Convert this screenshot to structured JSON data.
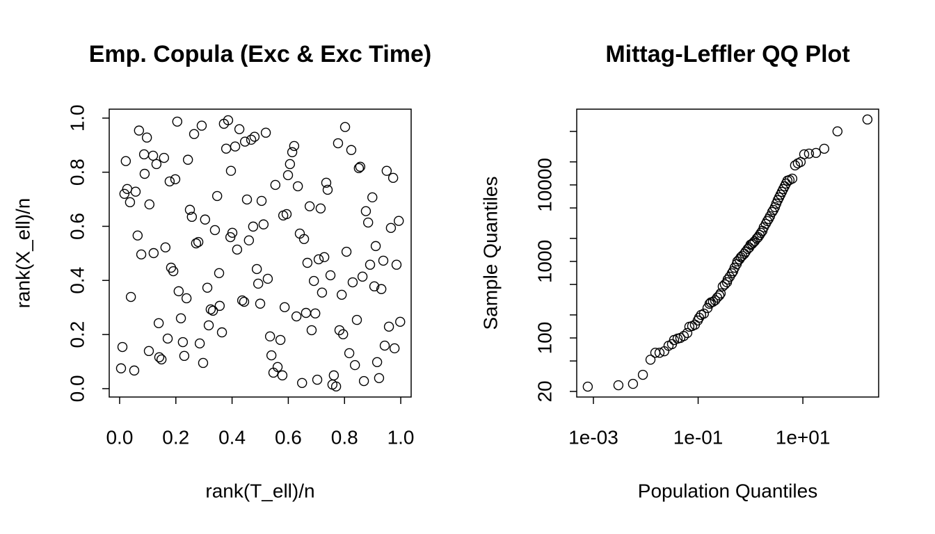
{
  "chart_data": [
    {
      "type": "scatter",
      "title": "Emp. Copula (Exc & Exc Time)",
      "x_label": "rank(T_ell)/n",
      "y_label": "rank(X_ell)/n",
      "xlim": [
        -0.037,
        1.037
      ],
      "ylim": [
        -0.031,
        1.033
      ],
      "xticks": [
        {
          "value": 0,
          "label": "0.0"
        },
        0.2,
        0.4,
        0.6,
        0.8,
        {
          "value": 1,
          "label": "1.0"
        }
      ],
      "yticks": [
        {
          "value": 0,
          "label": "0.0"
        },
        0.2,
        0.4,
        0.6,
        0.8,
        {
          "value": 1,
          "label": "1.0"
        }
      ],
      "color": "#000000",
      "x": [
        0.005,
        0.01,
        0.022,
        0.017,
        0.027,
        0.037,
        0.04,
        0.052,
        0.057,
        0.064,
        0.069,
        0.077,
        0.087,
        0.089,
        0.097,
        0.104,
        0.106,
        0.119,
        0.121,
        0.131,
        0.139,
        0.141,
        0.149,
        0.158,
        0.163,
        0.171,
        0.178,
        0.183,
        0.191,
        0.198,
        0.205,
        0.21,
        0.218,
        0.225,
        0.23,
        0.238,
        0.243,
        0.25,
        0.257,
        0.265,
        0.272,
        0.28,
        0.285,
        0.292,
        0.297,
        0.304,
        0.312,
        0.317,
        0.324,
        0.332,
        0.339,
        0.347,
        0.354,
        0.356,
        0.364,
        0.371,
        0.379,
        0.386,
        0.396,
        0.401,
        0.394,
        0.418,
        0.411,
        0.426,
        0.436,
        0.443,
        0.446,
        0.453,
        0.46,
        0.468,
        0.475,
        0.48,
        0.488,
        0.493,
        0.5,
        0.505,
        0.512,
        0.52,
        0.527,
        0.535,
        0.54,
        0.547,
        0.554,
        0.562,
        0.572,
        0.579,
        0.582,
        0.587,
        0.594,
        0.599,
        0.606,
        0.614,
        0.621,
        0.629,
        0.634,
        0.641,
        0.649,
        0.656,
        0.663,
        0.668,
        0.676,
        0.683,
        0.691,
        0.696,
        0.703,
        0.708,
        0.715,
        0.72,
        0.728,
        0.735,
        0.74,
        0.75,
        0.757,
        0.762,
        0.77,
        0.777,
        0.782,
        0.79,
        0.795,
        0.802,
        0.807,
        0.817,
        0.824,
        0.829,
        0.837,
        0.844,
        0.851,
        0.856,
        0.864,
        0.869,
        0.876,
        0.884,
        0.891,
        0.899,
        0.906,
        0.911,
        0.916,
        0.923,
        0.931,
        0.938,
        0.943,
        0.95,
        0.958,
        0.965,
        0.973,
        0.978,
        0.985,
        0.993,
        0.998
      ],
      "y": [
        0.075,
        0.154,
        0.841,
        0.72,
        0.738,
        0.689,
        0.339,
        0.067,
        0.728,
        0.566,
        0.954,
        0.496,
        0.866,
        0.794,
        0.928,
        0.139,
        0.681,
        0.861,
        0.501,
        0.83,
        0.242,
        0.116,
        0.108,
        0.853,
        0.522,
        0.185,
        0.766,
        0.447,
        0.434,
        0.774,
        0.987,
        0.36,
        0.26,
        0.172,
        0.121,
        0.334,
        0.846,
        0.661,
        0.635,
        0.941,
        0.537,
        0.542,
        0.167,
        0.972,
        0.095,
        0.625,
        0.373,
        0.234,
        0.293,
        0.288,
        0.586,
        0.712,
        0.427,
        0.306,
        0.208,
        0.979,
        0.887,
        0.992,
        0.805,
        0.576,
        0.56,
        0.514,
        0.895,
        0.959,
        0.326,
        0.321,
        0.913,
        0.699,
        0.548,
        0.92,
        0.599,
        0.931,
        0.442,
        0.388,
        0.314,
        0.694,
        0.607,
        0.946,
        0.406,
        0.193,
        0.123,
        0.059,
        0.753,
        0.08,
        0.18,
        0.049,
        0.64,
        0.301,
        0.645,
        0.789,
        0.83,
        0.874,
        0.897,
        0.267,
        0.748,
        0.573,
        0.021,
        0.553,
        0.28,
        0.465,
        0.674,
        0.216,
        0.398,
        0.278,
        0.033,
        0.478,
        0.666,
        0.355,
        0.486,
        0.761,
        0.735,
        0.419,
        0.015,
        0.049,
        0.008,
        0.907,
        0.216,
        0.347,
        0.201,
        0.967,
        0.506,
        0.131,
        0.882,
        0.393,
        0.087,
        0.254,
        0.815,
        0.82,
        0.414,
        0.028,
        0.656,
        0.614,
        0.458,
        0.707,
        0.378,
        0.527,
        0.098,
        0.039,
        0.368,
        0.473,
        0.159,
        0.805,
        0.229,
        0.594,
        0.779,
        0.149,
        0.458,
        0.62,
        0.247
      ]
    },
    {
      "type": "scatter",
      "title": "Mittag-Leffler QQ Plot",
      "x_label": "Population Quantiles",
      "y_label": "Sample Quantiles",
      "xscale": "log",
      "yscale": "log",
      "xlim": [
        0.00048,
        280
      ],
      "ylim": [
        16.9,
        97700
      ],
      "xticks": [
        {
          "value": 0.001,
          "label": "1e-03"
        },
        {
          "value": 0.1,
          "label": "1e-01"
        },
        {
          "value": 10,
          "label": "1e+01"
        }
      ],
      "yticks": [
        20,
        100,
        1000,
        10000
      ],
      "yticks_minor": [
        50,
        200,
        500,
        2000,
        5000,
        20000,
        50000
      ],
      "color": "#000000",
      "x": [
        0.00078,
        0.003,
        0.0057,
        0.0088,
        0.0123,
        0.0152,
        0.0183,
        0.0226,
        0.0272,
        0.0317,
        0.0347,
        0.0405,
        0.0457,
        0.0532,
        0.0621,
        0.068,
        0.0769,
        0.0869,
        0.0982,
        0.1045,
        0.114,
        0.129,
        0.151,
        0.165,
        0.175,
        0.192,
        0.211,
        0.231,
        0.254,
        0.269,
        0.295,
        0.324,
        0.355,
        0.366,
        0.401,
        0.44,
        0.467,
        0.497,
        0.545,
        0.561,
        0.615,
        0.653,
        0.695,
        0.762,
        0.809,
        0.887,
        0.944,
        1.0,
        1.07,
        1.13,
        1.2,
        1.32,
        1.4,
        1.49,
        1.58,
        1.69,
        1.79,
        1.96,
        2.09,
        2.22,
        2.36,
        2.59,
        2.75,
        2.93,
        3.11,
        3.31,
        3.52,
        3.74,
        3.97,
        4.22,
        4.49,
        4.77,
        5.07,
        5.56,
        6.28,
        7.1,
        8.02,
        9.08,
        10.6,
        13.1,
        17.8,
        25.6,
        45.8,
        171
      ],
      "y": [
        23.1,
        24.1,
        25.1,
        33,
        52,
        64,
        64,
        67,
        79,
        83,
        94,
        98,
        100,
        106,
        116,
        140,
        143,
        149,
        169,
        184,
        200,
        208,
        246,
        279,
        291,
        297,
        310,
        337,
        359,
        382,
        471,
        501,
        534,
        580,
        631,
        700,
        746,
        828,
        920,
        1000,
        1065,
        1135,
        1183,
        1259,
        1340,
        1459,
        1520,
        1652,
        1690,
        1760,
        1835,
        1995,
        2080,
        2215,
        2360,
        2510,
        2790,
        3100,
        3370,
        3590,
        3900,
        4420,
        4710,
        5120,
        5690,
        6310,
        6860,
        7460,
        8110,
        8820,
        9590,
        10420,
        11350,
        11590,
        12080,
        17990,
        19140,
        19950,
        25120,
        25650,
        26200,
        29700,
        50100,
        71600
      ]
    }
  ]
}
